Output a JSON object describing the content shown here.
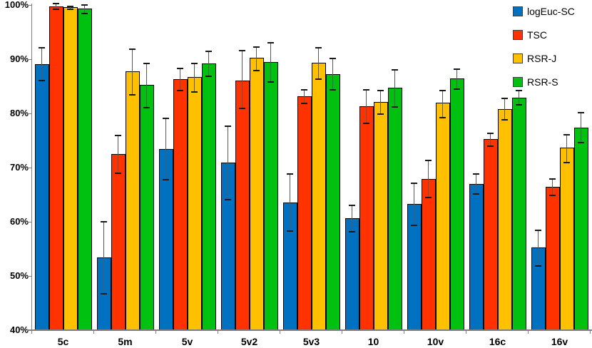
{
  "chart_data": {
    "type": "bar",
    "title": "",
    "xlabel": "",
    "ylabel": "",
    "categories": [
      "5c",
      "5m",
      "5v",
      "5v2",
      "5v3",
      "10",
      "10v",
      "16c",
      "16v"
    ],
    "series": [
      {
        "name": "logEuc-SC",
        "color": "#0070C0",
        "values": [
          89.1,
          53.4,
          73.4,
          70.9,
          63.6,
          60.7,
          63.3,
          67.0,
          55.2
        ],
        "error_low": [
          86.0,
          46.7,
          67.8,
          64.1,
          58.3,
          58.2,
          59.3,
          65.1,
          51.9
        ],
        "error_high": [
          92.3,
          60.1,
          79.2,
          77.8,
          69.0,
          63.2,
          67.2,
          69.0,
          58.5
        ]
      },
      {
        "name": "TSC",
        "color": "#FF3200",
        "values": [
          99.8,
          72.5,
          86.3,
          86.1,
          83.1,
          81.3,
          67.9,
          75.2,
          66.5
        ],
        "error_low": [
          99.2,
          68.9,
          84.2,
          80.9,
          81.8,
          78.2,
          64.5,
          73.9,
          64.9
        ],
        "error_high": [
          100.4,
          76.1,
          88.4,
          91.7,
          84.5,
          84.5,
          71.4,
          76.4,
          68.0
        ]
      },
      {
        "name": "RSR-J",
        "color": "#FFC000",
        "values": [
          99.6,
          87.7,
          86.7,
          90.3,
          89.4,
          82.1,
          82.0,
          80.8,
          73.7
        ],
        "error_low": [
          99.2,
          83.4,
          84.0,
          87.9,
          86.3,
          79.9,
          79.2,
          78.8,
          70.9
        ],
        "error_high": [
          99.9,
          92.0,
          89.4,
          92.4,
          92.2,
          84.4,
          84.3,
          82.9,
          76.2
        ]
      },
      {
        "name": "RSR-S",
        "color": "#00C010",
        "values": [
          99.3,
          85.3,
          89.2,
          89.5,
          87.3,
          84.7,
          86.4,
          82.9,
          77.4
        ],
        "error_low": [
          98.4,
          81.0,
          86.8,
          85.8,
          84.3,
          81.2,
          84.5,
          81.6,
          74.6
        ],
        "error_high": [
          100.1,
          89.3,
          91.6,
          93.2,
          90.3,
          88.2,
          88.3,
          84.3,
          80.2
        ]
      }
    ],
    "ylim": [
      40,
      100
    ],
    "ytick_values": [
      100,
      90,
      80,
      70,
      60,
      50,
      40
    ],
    "ytick_labels": [
      "100%",
      "90%",
      "80%",
      "70%",
      "60%",
      "50%",
      "40%"
    ],
    "grid": false,
    "error_bars": true,
    "legend_position": "top-right"
  },
  "colors": {
    "background": "#FFFFFF",
    "axis": "#7F7F7F",
    "bar_border": "#000000",
    "error_bar": "#404040",
    "text": "#000000"
  }
}
